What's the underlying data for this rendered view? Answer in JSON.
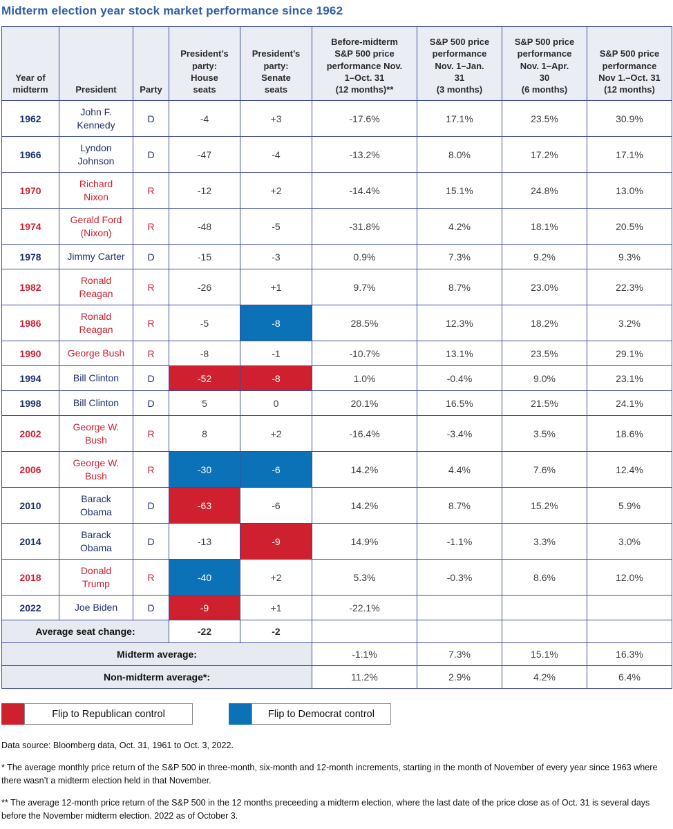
{
  "title": "Midterm election year stock market performance since 1962",
  "colors": {
    "title_blue": "#2d5ca8",
    "democrat_text": "#1e2f6d",
    "republican_text": "#cd2031",
    "flip_republican_bg": "#cf2030",
    "flip_democrat_bg": "#0b72b8",
    "header_bg": "#ebedf4",
    "summary_label_bg": "#e8eaf2",
    "border_navy": "#3b4a9e"
  },
  "chart_data": {
    "type": "table",
    "title": "Midterm election year stock market performance since 1962",
    "columns": [
      "Year of\nmidterm",
      "President",
      "Party",
      "President’s\nparty:\nHouse\nseats",
      "President’s\nparty:\nSenate\nseats",
      "Before-midterm\nS&P 500 price\nperformance Nov.\n1–Oct. 31\n(12 months)**",
      "S&P 500 price\nperformance\nNov. 1–Jan.\n31\n(3 months)",
      "S&P 500 price\nperformance\nNov. 1–Apr.\n30\n(6 months)",
      "S&P 500 price\nperformance\nNov 1.–Oct. 31\n(12 months)"
    ],
    "rows": [
      {
        "year": "1962",
        "president": "John F.\nKennedy",
        "party": "D",
        "house": "-4",
        "senate": "+3",
        "house_flip": null,
        "senate_flip": null,
        "before": "-17.6%",
        "m3": "17.1%",
        "m6": "23.5%",
        "m12": "30.9%"
      },
      {
        "year": "1966",
        "president": "Lyndon\nJohnson",
        "party": "D",
        "house": "-47",
        "senate": "-4",
        "house_flip": null,
        "senate_flip": null,
        "before": "-13.2%",
        "m3": "8.0%",
        "m6": "17.2%",
        "m12": "17.1%"
      },
      {
        "year": "1970",
        "president": "Richard\nNixon",
        "party": "R",
        "house": "-12",
        "senate": "+2",
        "house_flip": null,
        "senate_flip": null,
        "before": "-14.4%",
        "m3": "15.1%",
        "m6": "24.8%",
        "m12": "13.0%"
      },
      {
        "year": "1974",
        "president": "Gerald Ford\n(Nixon)",
        "party": "R",
        "house": "-48",
        "senate": "-5",
        "house_flip": null,
        "senate_flip": null,
        "before": "-31.8%",
        "m3": "4.2%",
        "m6": "18.1%",
        "m12": "20.5%"
      },
      {
        "year": "1978",
        "president": "Jimmy Carter",
        "party": "D",
        "house": "-15",
        "senate": "-3",
        "house_flip": null,
        "senate_flip": null,
        "before": "0.9%",
        "m3": "7.3%",
        "m6": "9.2%",
        "m12": "9.3%"
      },
      {
        "year": "1982",
        "president": "Ronald\nReagan",
        "party": "R",
        "house": "-26",
        "senate": "+1",
        "house_flip": null,
        "senate_flip": null,
        "before": "9.7%",
        "m3": "8.7%",
        "m6": "23.0%",
        "m12": "22.3%"
      },
      {
        "year": "1986",
        "president": "Ronald\nReagan",
        "party": "R",
        "house": "-5",
        "senate": "-8",
        "house_flip": null,
        "senate_flip": "D",
        "before": "28.5%",
        "m3": "12.3%",
        "m6": "18.2%",
        "m12": "3.2%"
      },
      {
        "year": "1990",
        "president": "George Bush",
        "party": "R",
        "house": "-8",
        "senate": "-1",
        "house_flip": null,
        "senate_flip": null,
        "before": "-10.7%",
        "m3": "13.1%",
        "m6": "23.5%",
        "m12": "29.1%"
      },
      {
        "year": "1994",
        "president": "Bill Clinton",
        "party": "D",
        "house": "-52",
        "senate": "-8",
        "house_flip": "R",
        "senate_flip": "R",
        "before": "1.0%",
        "m3": "-0.4%",
        "m6": "9.0%",
        "m12": "23.1%"
      },
      {
        "year": "1998",
        "president": "Bill Clinton",
        "party": "D",
        "house": "5",
        "senate": "0",
        "house_flip": null,
        "senate_flip": null,
        "before": "20.1%",
        "m3": "16.5%",
        "m6": "21.5%",
        "m12": "24.1%"
      },
      {
        "year": "2002",
        "president": "George W.\nBush",
        "party": "R",
        "house": "8",
        "senate": "+2",
        "house_flip": null,
        "senate_flip": null,
        "before": "-16.4%",
        "m3": "-3.4%",
        "m6": "3.5%",
        "m12": "18.6%"
      },
      {
        "year": "2006",
        "president": "George W.\nBush",
        "party": "R",
        "house": "-30",
        "senate": "-6",
        "house_flip": "D",
        "senate_flip": "D",
        "before": "14.2%",
        "m3": "4.4%",
        "m6": "7.6%",
        "m12": "12.4%"
      },
      {
        "year": "2010",
        "president": "Barack\nObama",
        "party": "D",
        "house": "-63",
        "senate": "-6",
        "house_flip": "R",
        "senate_flip": null,
        "before": "14.2%",
        "m3": "8.7%",
        "m6": "15.2%",
        "m12": "5.9%"
      },
      {
        "year": "2014",
        "president": "Barack\nObama",
        "party": "D",
        "house": "-13",
        "senate": "-9",
        "house_flip": null,
        "senate_flip": "R",
        "before": "14.9%",
        "m3": "-1.1%",
        "m6": "3.3%",
        "m12": "3.0%"
      },
      {
        "year": "2018",
        "president": "Donald\nTrump",
        "party": "R",
        "house": "-40",
        "senate": "+2",
        "house_flip": "D",
        "senate_flip": null,
        "before": "5.3%",
        "m3": "-0.3%",
        "m6": "8.6%",
        "m12": "12.0%"
      },
      {
        "year": "2022",
        "president": "Joe Biden",
        "party": "D",
        "house": "-9",
        "senate": "+1",
        "house_flip": "R",
        "senate_flip": null,
        "before": "-22.1%",
        "m3": "",
        "m6": "",
        "m12": ""
      }
    ],
    "summary": {
      "avg_seat_label": "Average seat change:",
      "avg_house": "-22",
      "avg_senate": "-2",
      "midterm_label": "Midterm average:",
      "midterm_values": [
        "-1.1%",
        "7.3%",
        "15.1%",
        "16.3%"
      ],
      "non_midterm_label": "Non-midterm average*:",
      "non_midterm_values": [
        "11.2%",
        "2.9%",
        "4.2%",
        "6.4%"
      ]
    }
  },
  "legend": {
    "republican": {
      "color": "#cf2030",
      "label": "Flip to Republican control"
    },
    "democrat": {
      "color": "#0b72b8",
      "label": "Flip to Democrat control"
    }
  },
  "footnotes": {
    "source": "Data source: Bloomberg data, Oct. 31, 1961 to Oct. 3, 2022.",
    "note1": "* The average monthly price return of the S&P 500 in three-month, six-month and 12-month increments, starting in the month of November of every year since 1963 where there wasn’t a midterm election held in that November.",
    "note2": "** The average 12-month price return of the S&P 500 in the 12 months preceeding a midterm election, where the last date of the price close as of Oct. 31 is several days before the November midterm election. 2022 as of October 3."
  }
}
